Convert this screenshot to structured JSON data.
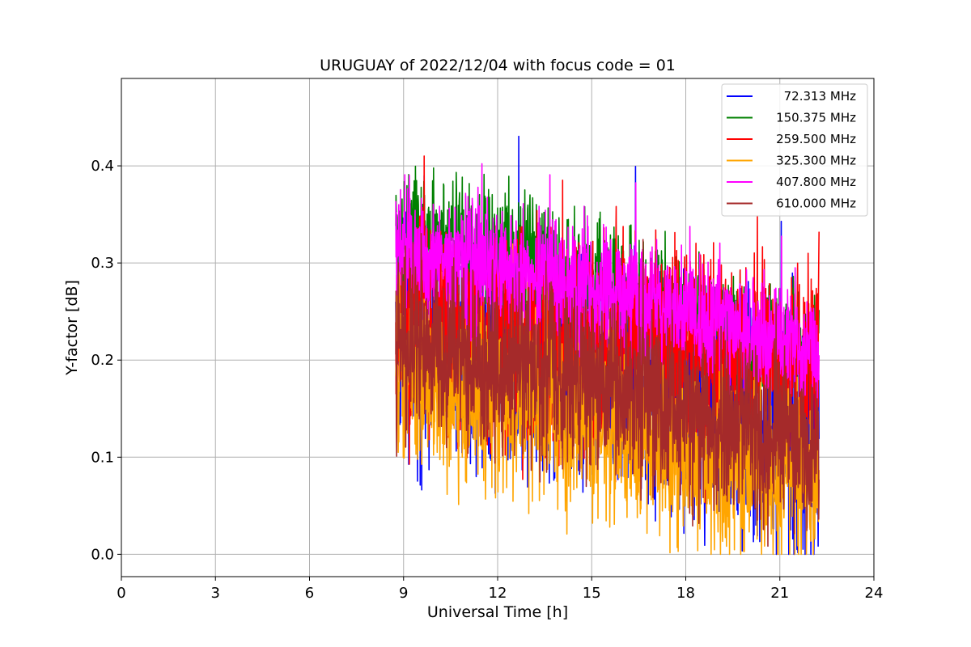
{
  "chart_data": {
    "type": "line",
    "title": "URUGUAY of 2022/12/04 with focus code = 01",
    "xlabel": "Universal Time [h]",
    "ylabel": "Y-factor [dB]",
    "xlim": [
      0,
      24
    ],
    "ylim": [
      -0.023,
      0.49
    ],
    "xticks": [
      0,
      3,
      6,
      9,
      12,
      15,
      18,
      21,
      24
    ],
    "xtick_labels": [
      "0",
      "3",
      "6",
      "9",
      "12",
      "15",
      "18",
      "21",
      "24"
    ],
    "yticks": [
      0.0,
      0.1,
      0.2,
      0.3,
      0.4
    ],
    "ytick_labels": [
      "0.0",
      "0.1",
      "0.2",
      "0.3",
      "0.4"
    ],
    "grid": true,
    "legend_position": "top-right",
    "x": [
      8.75,
      9.0,
      9.5,
      10.0,
      10.5,
      11.0,
      11.5,
      12.0,
      12.5,
      13.0,
      13.5,
      14.0,
      14.5,
      15.0,
      15.5,
      16.0,
      16.5,
      17.0,
      17.5,
      18.0,
      18.5,
      19.0,
      19.5,
      20.0,
      20.5,
      21.0,
      21.5,
      22.0,
      22.25
    ],
    "series": [
      {
        "name": " 72.313 MHz",
        "color": "#0000ff",
        "mean": [
          0.24,
          0.24,
          0.23,
          0.23,
          0.22,
          0.22,
          0.22,
          0.21,
          0.21,
          0.2,
          0.2,
          0.19,
          0.19,
          0.18,
          0.18,
          0.17,
          0.17,
          0.16,
          0.16,
          0.15,
          0.15,
          0.14,
          0.14,
          0.13,
          0.13,
          0.12,
          0.12,
          0.12,
          0.11
        ],
        "spread": [
          0.11,
          0.11,
          0.11,
          0.11,
          0.11,
          0.11,
          0.11,
          0.11,
          0.11,
          0.11,
          0.11,
          0.11,
          0.11,
          0.11,
          0.11,
          0.11,
          0.11,
          0.11,
          0.11,
          0.11,
          0.11,
          0.11,
          0.11,
          0.11,
          0.11,
          0.11,
          0.11,
          0.11,
          0.11
        ]
      },
      {
        "name": "150.375 MHz",
        "color": "#008000",
        "mean": [
          0.33,
          0.33,
          0.33,
          0.32,
          0.32,
          0.32,
          0.31,
          0.31,
          0.3,
          0.3,
          0.29,
          0.29,
          0.28,
          0.28,
          0.27,
          0.27,
          0.26,
          0.26,
          0.25,
          0.25,
          0.24,
          0.23,
          0.23,
          0.22,
          0.22,
          0.22,
          0.21,
          0.21,
          0.21
        ],
        "spread": [
          0.06,
          0.06,
          0.06,
          0.06,
          0.06,
          0.06,
          0.06,
          0.06,
          0.06,
          0.06,
          0.06,
          0.06,
          0.06,
          0.06,
          0.06,
          0.06,
          0.06,
          0.05,
          0.05,
          0.05,
          0.05,
          0.05,
          0.05,
          0.05,
          0.05,
          0.05,
          0.05,
          0.05,
          0.05
        ]
      },
      {
        "name": "259.500 MHz",
        "color": "#ff0000",
        "mean": [
          0.23,
          0.23,
          0.23,
          0.23,
          0.22,
          0.22,
          0.22,
          0.22,
          0.22,
          0.22,
          0.21,
          0.21,
          0.21,
          0.21,
          0.21,
          0.21,
          0.21,
          0.2,
          0.2,
          0.2,
          0.2,
          0.2,
          0.2,
          0.2,
          0.19,
          0.19,
          0.19,
          0.19,
          0.19
        ],
        "spread": [
          0.1,
          0.1,
          0.1,
          0.1,
          0.1,
          0.1,
          0.1,
          0.1,
          0.1,
          0.1,
          0.1,
          0.1,
          0.1,
          0.1,
          0.1,
          0.1,
          0.1,
          0.1,
          0.1,
          0.1,
          0.1,
          0.1,
          0.1,
          0.1,
          0.1,
          0.1,
          0.1,
          0.1,
          0.1
        ]
      },
      {
        "name": "325.300 MHz",
        "color": "#ffa500",
        "mean": [
          0.18,
          0.18,
          0.17,
          0.17,
          0.17,
          0.16,
          0.16,
          0.15,
          0.15,
          0.15,
          0.14,
          0.14,
          0.13,
          0.13,
          0.13,
          0.12,
          0.12,
          0.11,
          0.11,
          0.1,
          0.1,
          0.09,
          0.09,
          0.08,
          0.08,
          0.08,
          0.07,
          0.07,
          0.07
        ],
        "spread": [
          0.08,
          0.08,
          0.08,
          0.08,
          0.08,
          0.08,
          0.08,
          0.08,
          0.08,
          0.08,
          0.08,
          0.08,
          0.08,
          0.08,
          0.08,
          0.08,
          0.08,
          0.08,
          0.08,
          0.08,
          0.08,
          0.08,
          0.08,
          0.08,
          0.08,
          0.08,
          0.08,
          0.08,
          0.08
        ]
      },
      {
        "name": "407.800 MHz",
        "color": "#ff00ff",
        "mean": [
          0.31,
          0.31,
          0.31,
          0.3,
          0.3,
          0.3,
          0.3,
          0.3,
          0.29,
          0.29,
          0.29,
          0.28,
          0.28,
          0.28,
          0.27,
          0.27,
          0.26,
          0.26,
          0.25,
          0.25,
          0.24,
          0.24,
          0.23,
          0.23,
          0.22,
          0.22,
          0.22,
          0.21,
          0.21
        ],
        "spread": [
          0.06,
          0.06,
          0.06,
          0.06,
          0.06,
          0.06,
          0.06,
          0.06,
          0.06,
          0.06,
          0.06,
          0.06,
          0.06,
          0.06,
          0.06,
          0.06,
          0.06,
          0.05,
          0.05,
          0.05,
          0.05,
          0.05,
          0.05,
          0.05,
          0.05,
          0.05,
          0.05,
          0.05,
          0.05
        ]
      },
      {
        "name": "610.000 MHz",
        "color": "#a52a2a",
        "mean": [
          0.21,
          0.21,
          0.21,
          0.21,
          0.21,
          0.2,
          0.2,
          0.2,
          0.19,
          0.19,
          0.19,
          0.18,
          0.18,
          0.18,
          0.17,
          0.17,
          0.16,
          0.16,
          0.15,
          0.15,
          0.14,
          0.14,
          0.13,
          0.13,
          0.12,
          0.12,
          0.12,
          0.11,
          0.11
        ],
        "spread": [
          0.08,
          0.08,
          0.08,
          0.08,
          0.08,
          0.08,
          0.08,
          0.08,
          0.08,
          0.08,
          0.08,
          0.08,
          0.08,
          0.08,
          0.08,
          0.08,
          0.08,
          0.08,
          0.08,
          0.08,
          0.08,
          0.08,
          0.08,
          0.08,
          0.08,
          0.08,
          0.08,
          0.08,
          0.08
        ]
      }
    ]
  }
}
